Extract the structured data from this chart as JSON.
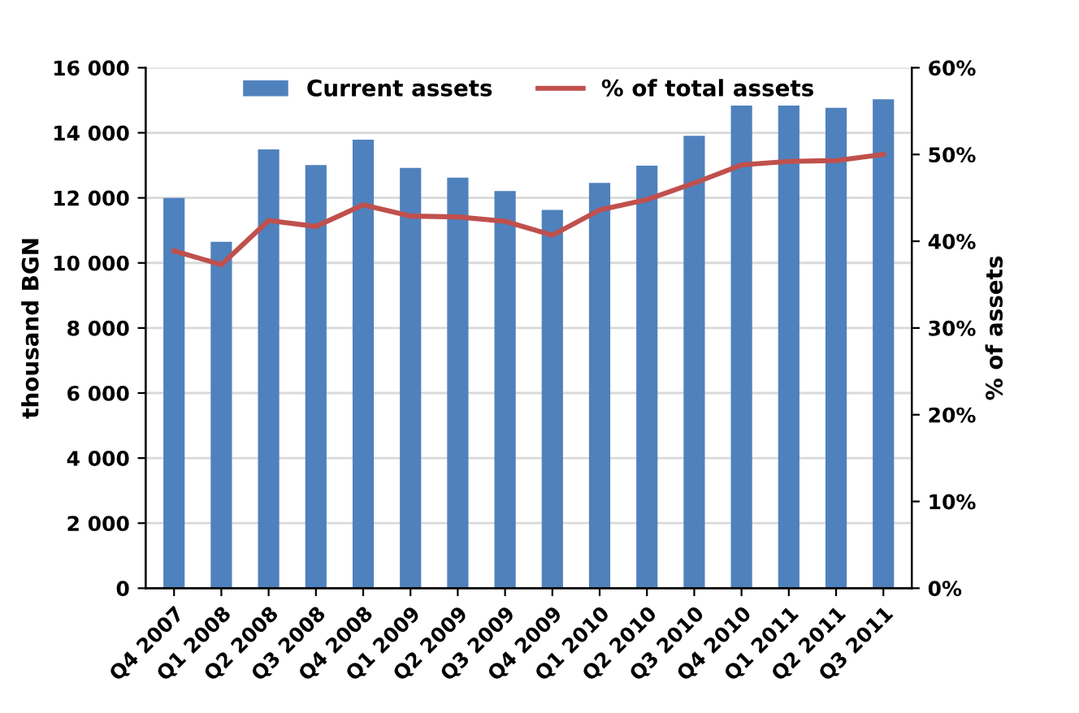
{
  "chart_data": {
    "type": "bar",
    "ylabel": "thousand BGN",
    "y2label": "% of assets",
    "categories": [
      "Q4 2007",
      "Q1 2008",
      "Q2 2008",
      "Q3 2008",
      "Q4 2008",
      "Q1 2009",
      "Q2 2009",
      "Q3 2009",
      "Q4 2009",
      "Q1 2010",
      "Q2 2010",
      "Q3 2010",
      "Q4 2010",
      "Q1 2011",
      "Q2 2011",
      "Q3 2011"
    ],
    "series": [
      {
        "name": "Current assets",
        "color": "#4f81bd",
        "values": [
          12000,
          10650,
          13490,
          13010,
          13790,
          12920,
          12620,
          12210,
          11630,
          12460,
          12990,
          13910,
          14840,
          14840,
          14770,
          15030
        ]
      },
      {
        "name": "% of total assets",
        "type": "line",
        "axis": "y2",
        "color": "#c0504d",
        "values": [
          38.9,
          37.3,
          42.4,
          41.7,
          44.2,
          42.9,
          42.8,
          42.3,
          40.7,
          43.6,
          44.8,
          46.7,
          48.8,
          49.2,
          49.3,
          50.0
        ]
      }
    ],
    "ylim": [
      0,
      16000
    ],
    "yticks": [
      {
        "value": 0,
        "label": "0"
      },
      {
        "value": 2000,
        "label": "2 000"
      },
      {
        "value": 4000,
        "label": "4 000"
      },
      {
        "value": 6000,
        "label": "6 000"
      },
      {
        "value": 8000,
        "label": "8 000"
      },
      {
        "value": 10000,
        "label": "10 000"
      },
      {
        "value": 12000,
        "label": "12 000"
      },
      {
        "value": 14000,
        "label": "14 000"
      },
      {
        "value": 16000,
        "label": "16 000"
      }
    ],
    "y2lim": [
      0,
      60
    ],
    "y2ticks": [
      {
        "value": 0,
        "label": "0%"
      },
      {
        "value": 10,
        "label": "10%"
      },
      {
        "value": 20,
        "label": "20%"
      },
      {
        "value": 30,
        "label": "30%"
      },
      {
        "value": 40,
        "label": "40%"
      },
      {
        "value": 50,
        "label": "50%"
      },
      {
        "value": 60,
        "label": "60%"
      }
    ],
    "grid": "y",
    "legend": "top",
    "marker": "none",
    "line_style": "solid"
  }
}
